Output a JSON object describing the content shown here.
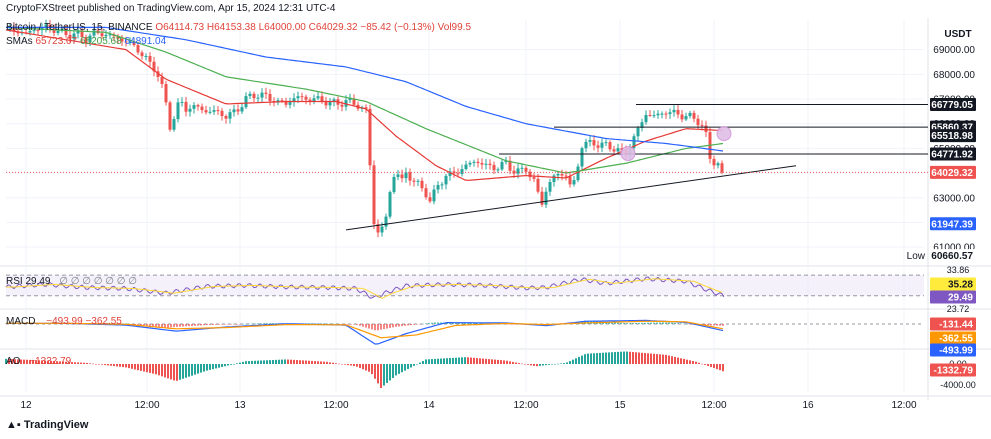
{
  "attribution": "CryptoFXStreet published on TradingView.com, Apr 15, 2024 12:31 UTC-4",
  "legend": {
    "symbol": "Bitcoin / TetherUS, 15, BINANCE",
    "open": "O64114.73",
    "high": "H64153.38",
    "low": "L64000.00",
    "close": "C64029.32",
    "change": "−85.42 (−0.13%)",
    "volume": "Vol99.5",
    "sma_label": "SMAs",
    "sma1": "65723.07",
    "sma2": "65205.68",
    "sma3": "64891.04"
  },
  "currency": "USDT",
  "rsi_label": "RSI  29.49",
  "rsi_dots": "∅ ∅ ∅ ∅ ∅ ∅ ∅",
  "macd_label": "MACD",
  "macd_values": "−493.99  −362.55",
  "ao_label": "AO",
  "ao_value": "−1332.79",
  "watermark": "TradingView",
  "colors": {
    "up": "#26a69a",
    "down": "#ef5350",
    "sma_red": "#e53935",
    "sma_green": "#4caf50",
    "sma_blue": "#2962ff",
    "rsi": "#7e57c2",
    "macd_orange": "#ff9800",
    "axis_text": "#131722",
    "grid": "#f0f3fa"
  },
  "chart_data": {
    "type": "candlestick",
    "title": "Bitcoin / TetherUS, 15, BINANCE",
    "x_ticks": [
      "12",
      "12:00",
      "13",
      "12:00",
      "14",
      "12:00",
      "15",
      "12:00",
      "16",
      "12:00"
    ],
    "price_axis": {
      "ticks": [
        "69000.00",
        "68000.00",
        "67000.00",
        "66000.00",
        "65000.00",
        "64000.00",
        "63000.00",
        "62000.00",
        "61000.00"
      ],
      "range": [
        60400,
        70200
      ]
    },
    "price_path": [
      [
        0,
        69900
      ],
      [
        10,
        69750
      ],
      [
        20,
        69650
      ],
      [
        30,
        69850
      ],
      [
        40,
        69900
      ],
      [
        50,
        69800
      ],
      [
        60,
        69600
      ],
      [
        70,
        69650
      ],
      [
        80,
        69450
      ],
      [
        90,
        69700
      ],
      [
        100,
        69600
      ],
      [
        110,
        69500
      ],
      [
        120,
        69300
      ],
      [
        130,
        69100
      ],
      [
        140,
        68600
      ],
      [
        150,
        68200
      ],
      [
        155,
        67600
      ],
      [
        160,
        66800
      ],
      [
        165,
        65700
      ],
      [
        170,
        66600
      ],
      [
        175,
        66900
      ],
      [
        180,
        66600
      ],
      [
        190,
        66700
      ],
      [
        200,
        66500
      ],
      [
        210,
        66500
      ],
      [
        220,
        66300
      ],
      [
        230,
        66500
      ],
      [
        240,
        67000
      ],
      [
        250,
        67200
      ],
      [
        260,
        67100
      ],
      [
        270,
        66900
      ],
      [
        280,
        66800
      ],
      [
        290,
        67100
      ],
      [
        300,
        67000
      ],
      [
        310,
        67000
      ],
      [
        320,
        66900
      ],
      [
        330,
        66800
      ],
      [
        340,
        66900
      ],
      [
        350,
        66800
      ],
      [
        360,
        66500
      ],
      [
        365,
        63800
      ],
      [
        368,
        62000
      ],
      [
        372,
        61600
      ],
      [
        376,
        61800
      ],
      [
        380,
        62200
      ],
      [
        385,
        63500
      ],
      [
        390,
        64200
      ],
      [
        395,
        63600
      ],
      [
        400,
        64000
      ],
      [
        410,
        63600
      ],
      [
        420,
        63200
      ],
      [
        425,
        62800
      ],
      [
        430,
        63400
      ],
      [
        440,
        63900
      ],
      [
        450,
        64000
      ],
      [
        460,
        64300
      ],
      [
        470,
        64500
      ],
      [
        480,
        64300
      ],
      [
        490,
        64200
      ],
      [
        500,
        64400
      ],
      [
        510,
        64000
      ],
      [
        520,
        64200
      ],
      [
        530,
        63500
      ],
      [
        535,
        62700
      ],
      [
        540,
        63300
      ],
      [
        550,
        64000
      ],
      [
        560,
        63900
      ],
      [
        565,
        63400
      ],
      [
        570,
        63800
      ],
      [
        575,
        65100
      ],
      [
        580,
        65200
      ],
      [
        590,
        65200
      ],
      [
        600,
        65100
      ],
      [
        610,
        65000
      ],
      [
        615,
        64800
      ],
      [
        620,
        64800
      ],
      [
        630,
        65600
      ],
      [
        640,
        66400
      ],
      [
        650,
        66300
      ],
      [
        660,
        66500
      ],
      [
        670,
        66400
      ],
      [
        680,
        66300
      ],
      [
        690,
        66200
      ],
      [
        695,
        66000
      ],
      [
        700,
        65500
      ],
      [
        703,
        64700
      ],
      [
        706,
        64400
      ],
      [
        710,
        64500
      ],
      [
        715,
        64200
      ],
      [
        718,
        64029
      ]
    ],
    "series": [
      {
        "name": "SMA 50",
        "color": "#e53935",
        "values": [
          [
            0,
            69800
          ],
          [
            60,
            69400
          ],
          [
            120,
            69000
          ],
          [
            160,
            67800
          ],
          [
            220,
            66800
          ],
          [
            280,
            66900
          ],
          [
            330,
            66900
          ],
          [
            360,
            66600
          ],
          [
            390,
            65500
          ],
          [
            430,
            64300
          ],
          [
            460,
            63700
          ],
          [
            520,
            63900
          ],
          [
            560,
            63800
          ],
          [
            600,
            64600
          ],
          [
            640,
            65300
          ],
          [
            680,
            65800
          ],
          [
            718,
            65723
          ]
        ]
      },
      {
        "name": "SMA 100",
        "color": "#4caf50",
        "values": [
          [
            0,
            69900
          ],
          [
            100,
            69700
          ],
          [
            160,
            68900
          ],
          [
            220,
            67900
          ],
          [
            300,
            67400
          ],
          [
            360,
            66900
          ],
          [
            420,
            65800
          ],
          [
            500,
            64500
          ],
          [
            560,
            64000
          ],
          [
            620,
            64400
          ],
          [
            680,
            65000
          ],
          [
            718,
            65206
          ]
        ]
      },
      {
        "name": "SMA 200",
        "color": "#2962ff",
        "values": [
          [
            0,
            69900
          ],
          [
            100,
            69900
          ],
          [
            180,
            69400
          ],
          [
            260,
            68700
          ],
          [
            340,
            68300
          ],
          [
            400,
            67700
          ],
          [
            460,
            66700
          ],
          [
            520,
            66000
          ],
          [
            560,
            65700
          ],
          [
            600,
            65400
          ],
          [
            660,
            65200
          ],
          [
            718,
            64891
          ]
        ]
      }
    ],
    "support_line": {
      "from": [
        340,
        61700
      ],
      "to": [
        790,
        64300
      ]
    },
    "horizontal_levels": [
      {
        "label": "66779.05",
        "value": 66779.05,
        "from_x": 630
      },
      {
        "label": "65860.37",
        "value": 65860.37,
        "from_x": 548
      },
      {
        "label": "64771.92",
        "value": 64771.92,
        "from_x": 493
      }
    ],
    "dotted_last_price": 64029.32,
    "price_labels": [
      {
        "text": "66779.05",
        "value": 66779.05,
        "style": "black"
      },
      {
        "text": "65860.37",
        "value": 65860.37,
        "style": "black"
      },
      {
        "text": "65518.98",
        "value": 65518.98,
        "style": "black"
      },
      {
        "text": "64771.92",
        "value": 64771.92,
        "style": "black"
      },
      {
        "text": "64029.32",
        "value": 64029.32,
        "style": "red"
      },
      {
        "text": "61947.39",
        "value": 61947.39,
        "style": "blue"
      },
      {
        "text": "60660.57",
        "value": 60660.57,
        "style": "gray",
        "prefix": "Low"
      }
    ],
    "markers": [
      {
        "x": 718,
        "value": 65600
      },
      {
        "x": 622,
        "value": 64790
      }
    ],
    "rsi": {
      "ticks": [
        "33.86",
        "23.72"
      ],
      "band": [
        30,
        70
      ],
      "labels": [
        {
          "text": "35.28",
          "style": "yellow"
        },
        {
          "text": "29.49",
          "style": "purple"
        }
      ],
      "values": [
        [
          0,
          47
        ],
        [
          40,
          52
        ],
        [
          80,
          46
        ],
        [
          120,
          44
        ],
        [
          160,
          35
        ],
        [
          200,
          48
        ],
        [
          240,
          50
        ],
        [
          280,
          47
        ],
        [
          320,
          46
        ],
        [
          350,
          44
        ],
        [
          368,
          25
        ],
        [
          380,
          36
        ],
        [
          400,
          49
        ],
        [
          440,
          52
        ],
        [
          480,
          50
        ],
        [
          520,
          45
        ],
        [
          540,
          46
        ],
        [
          575,
          62
        ],
        [
          600,
          54
        ],
        [
          640,
          63
        ],
        [
          680,
          58
        ],
        [
          700,
          42
        ],
        [
          718,
          29.49
        ]
      ]
    },
    "macd": {
      "ticks": [
        "-131.44"
      ],
      "labels": [
        {
          "text": "-131.44",
          "style": "red"
        },
        {
          "text": "-362.55",
          "style": "orange"
        },
        {
          "text": "-493.99",
          "style": "blue"
        }
      ],
      "hist": [
        [
          0,
          30
        ],
        [
          60,
          80
        ],
        [
          120,
          40
        ],
        [
          160,
          -260
        ],
        [
          200,
          -80
        ],
        [
          260,
          60
        ],
        [
          320,
          40
        ],
        [
          350,
          -40
        ],
        [
          370,
          -480
        ],
        [
          390,
          -200
        ],
        [
          430,
          120
        ],
        [
          480,
          60
        ],
        [
          520,
          -60
        ],
        [
          560,
          40
        ],
        [
          580,
          260
        ],
        [
          620,
          60
        ],
        [
          660,
          120
        ],
        [
          700,
          -90
        ],
        [
          718,
          -131
        ]
      ],
      "macd_line": [
        [
          0,
          50
        ],
        [
          60,
          40
        ],
        [
          120,
          -80
        ],
        [
          170,
          -520
        ],
        [
          220,
          -220
        ],
        [
          280,
          20
        ],
        [
          340,
          -80
        ],
        [
          370,
          -1500
        ],
        [
          400,
          -700
        ],
        [
          440,
          100
        ],
        [
          500,
          80
        ],
        [
          540,
          -120
        ],
        [
          580,
          200
        ],
        [
          640,
          260
        ],
        [
          680,
          120
        ],
        [
          718,
          -494
        ]
      ],
      "signal_line": [
        [
          0,
          60
        ],
        [
          60,
          50
        ],
        [
          120,
          -20
        ],
        [
          170,
          -350
        ],
        [
          220,
          -260
        ],
        [
          280,
          -40
        ],
        [
          340,
          -60
        ],
        [
          375,
          -1000
        ],
        [
          410,
          -800
        ],
        [
          450,
          -100
        ],
        [
          500,
          40
        ],
        [
          540,
          -40
        ],
        [
          580,
          80
        ],
        [
          640,
          200
        ],
        [
          680,
          160
        ],
        [
          718,
          -363
        ]
      ]
    },
    "ao": {
      "ticks": [
        "0.00",
        "-4000.00"
      ],
      "labels": [
        {
          "text": "-1332.79",
          "style": "red"
        }
      ],
      "values": [
        [
          0,
          900
        ],
        [
          40,
          600
        ],
        [
          80,
          200
        ],
        [
          120,
          -600
        ],
        [
          150,
          -1800
        ],
        [
          170,
          -3000
        ],
        [
          200,
          -1200
        ],
        [
          240,
          500
        ],
        [
          280,
          800
        ],
        [
          320,
          400
        ],
        [
          350,
          -400
        ],
        [
          365,
          -1500
        ],
        [
          375,
          -4200
        ],
        [
          390,
          -2000
        ],
        [
          420,
          800
        ],
        [
          460,
          1200
        ],
        [
          500,
          600
        ],
        [
          530,
          -400
        ],
        [
          560,
          200
        ],
        [
          580,
          1800
        ],
        [
          620,
          2200
        ],
        [
          660,
          1600
        ],
        [
          690,
          400
        ],
        [
          718,
          -1332.79
        ]
      ]
    }
  }
}
